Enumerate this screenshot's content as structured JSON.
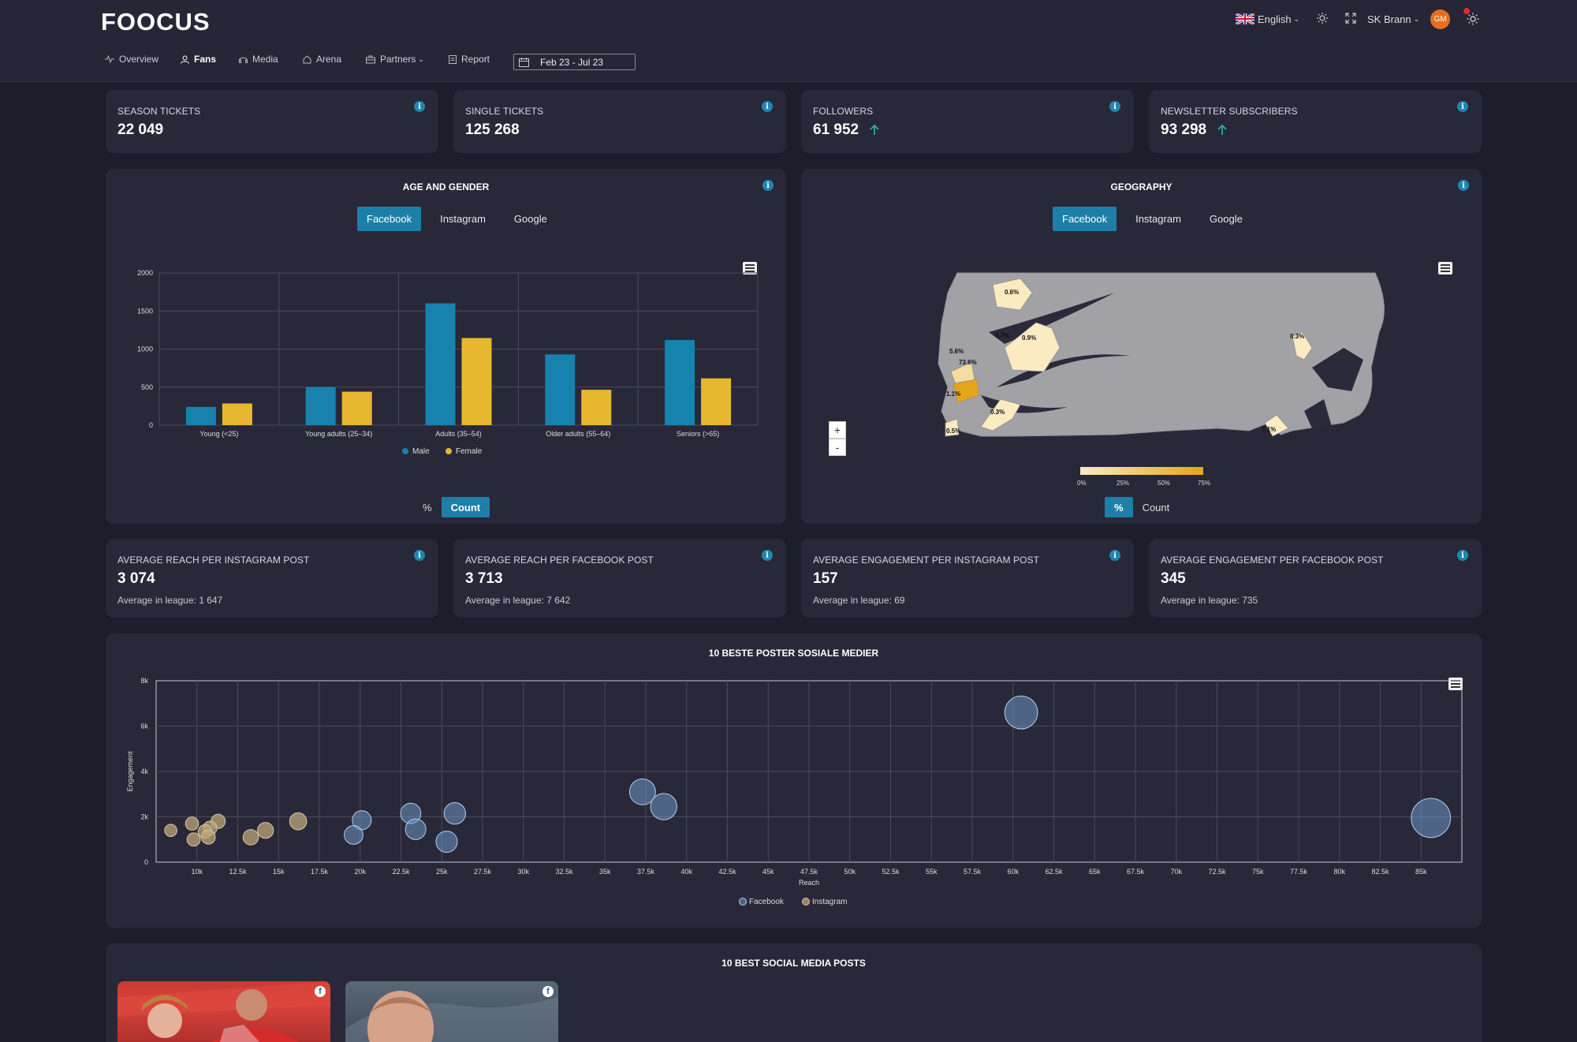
{
  "app": {
    "logo": "FOOCUS"
  },
  "topbar": {
    "language": "English",
    "club": "SK Brann",
    "avatar_initials": "GM"
  },
  "nav": {
    "items": [
      {
        "label": "Overview"
      },
      {
        "label": "Fans",
        "active": true
      },
      {
        "label": "Media"
      },
      {
        "label": "Arena"
      },
      {
        "label": "Partners"
      },
      {
        "label": "Report"
      }
    ],
    "date_range": "Feb 23 - Jul 23"
  },
  "kpis": [
    {
      "label": "SEASON TICKETS",
      "value": "22 049"
    },
    {
      "label": "SINGLE TICKETS",
      "value": "125 268"
    },
    {
      "label": "FOLLOWERS",
      "value": "61 952",
      "trend": "up"
    },
    {
      "label": "NEWSLETTER SUBSCRIBERS",
      "value": "93 298",
      "trend": "up"
    }
  ],
  "age_gender": {
    "title": "AGE AND GENDER",
    "tabs": [
      "Facebook",
      "Instagram",
      "Google"
    ],
    "active_tab": "Facebook",
    "toggle": [
      "%",
      "Count"
    ],
    "active_toggle": "Count"
  },
  "geography": {
    "title": "GEOGRAPHY",
    "tabs": [
      "Facebook",
      "Instagram",
      "Google"
    ],
    "active_tab": "Facebook",
    "toggle": [
      "%",
      "Count"
    ],
    "active_toggle": "%",
    "legend_ticks": [
      "0%",
      "25%",
      "50%",
      "75%"
    ],
    "zoom_in": "+",
    "zoom_out": "-",
    "labels": [
      "0.6%",
      "0.7%",
      "0.9%",
      "5.6%",
      "73.6%",
      "1.1%",
      "0.3%",
      "0.5%",
      "0.3%",
      "7.1%"
    ],
    "colors": {
      "land": "#a2a2a6",
      "light": "#fbebc0",
      "mid": "#f4dca0",
      "high": "#e5a51a",
      "sea": "#2a2a3a"
    }
  },
  "metrics": [
    {
      "label": "AVERAGE REACH PER INSTAGRAM POST",
      "value": "3 074",
      "sub": "Average in league: 1 647"
    },
    {
      "label": "AVERAGE REACH PER FACEBOOK POST",
      "value": "3 713",
      "sub": "Average in league: 7 642"
    },
    {
      "label": "AVERAGE ENGAGEMENT PER INSTAGRAM POST",
      "value": "157",
      "sub": "Average in league: 69"
    },
    {
      "label": "AVERAGE ENGAGEMENT PER FACEBOOK POST",
      "value": "345",
      "sub": "Average in league: 735"
    }
  ],
  "bubble_section": {
    "title": "10 BESTE POSTER SOSIALE MEDIER"
  },
  "posts_section": {
    "title": "10 BEST SOCIAL MEDIA POSTS"
  },
  "colors": {
    "accent": "#1d7fa8",
    "male": "#1682ad",
    "female": "#e8b730",
    "up": "#2bbd98",
    "card": "#282839",
    "bg": "#1d1d2c"
  },
  "chart_data": [
    {
      "type": "bar",
      "categories": [
        "Young (<25)",
        "Young adults (25–34)",
        "Adults (35–54)",
        "Older adults (55–64)",
        "Seniors (>65)"
      ],
      "series": [
        {
          "name": "Male",
          "values": [
            240,
            500,
            1600,
            930,
            1120
          ]
        },
        {
          "name": "Female",
          "values": [
            285,
            440,
            1145,
            465,
            615
          ]
        }
      ],
      "ylim": [
        0,
        2000
      ],
      "yticks": [
        0,
        500,
        1000,
        1500,
        2000
      ],
      "legend": "bottom"
    },
    {
      "type": "scatter",
      "xlabel": "Reach",
      "ylabel": "Engagement",
      "xlim": [
        7500,
        87500
      ],
      "ylim": [
        0,
        8000
      ],
      "xticks": [
        "10k",
        "12.5k",
        "15k",
        "17.5k",
        "20k",
        "22.5k",
        "25k",
        "27.5k",
        "30k",
        "32.5k",
        "35k",
        "37.5k",
        "40k",
        "42.5k",
        "45k",
        "47.5k",
        "50k",
        "52.5k",
        "55k",
        "57.5k",
        "60k",
        "62.5k",
        "65k",
        "67.5k",
        "70k",
        "72.5k",
        "75k",
        "77.5k",
        "80k",
        "82.5k",
        "85k"
      ],
      "yticks": [
        "0",
        "2k",
        "4k",
        "6k",
        "8k"
      ],
      "legend": "bottom",
      "series": [
        {
          "name": "Facebook",
          "points": [
            [
              60500,
              6600
            ],
            [
              85600,
              1950
            ],
            [
              37300,
              3100
            ],
            [
              38600,
              2450
            ],
            [
              20100,
              1850
            ],
            [
              23100,
              2150
            ],
            [
              25800,
              2150
            ],
            [
              23400,
              1450
            ],
            [
              19600,
              1200
            ],
            [
              25300,
              900
            ]
          ]
        },
        {
          "name": "Instagram",
          "points": [
            [
              16200,
              1800
            ],
            [
              14200,
              1400
            ],
            [
              13300,
              1100
            ],
            [
              11300,
              1800
            ],
            [
              10800,
              1500
            ],
            [
              10500,
              1350
            ],
            [
              10700,
              1100
            ],
            [
              9700,
              1700
            ],
            [
              9800,
              1000
            ],
            [
              8400,
              1400
            ]
          ]
        }
      ]
    }
  ]
}
